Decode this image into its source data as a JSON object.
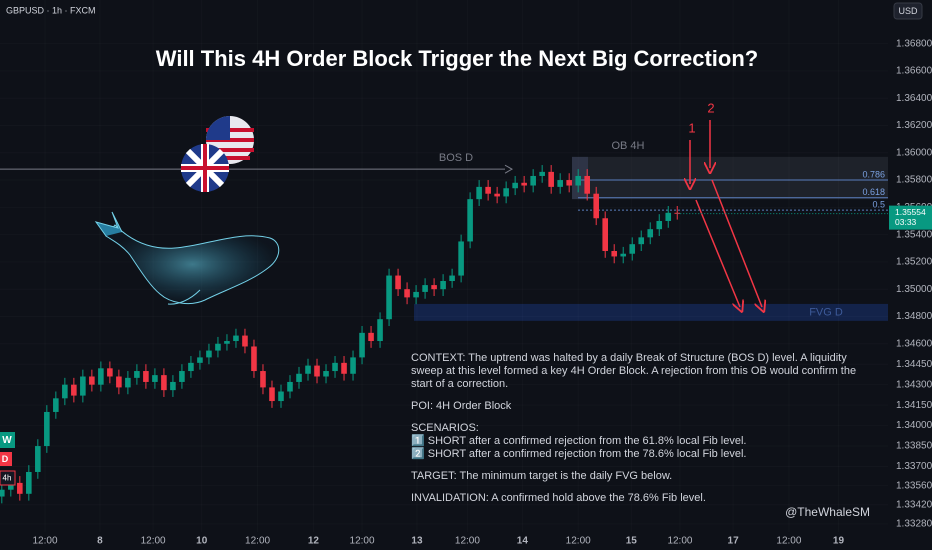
{
  "chart_data": {
    "type": "candlestick",
    "title": "Will This 4H Order Block Trigger the Next Big Correction?",
    "symbol_label": "GBPUSD · 1h · FXCM",
    "currency_label": "USD",
    "up_color": "#089981",
    "down_color": "#f23645",
    "grid": true,
    "open": [
      1.3348,
      1.3353,
      1.3358,
      1.335,
      1.3366,
      1.3385,
      1.341,
      1.342,
      1.343,
      1.3422,
      1.3436,
      1.343,
      1.3442,
      1.3436,
      1.3428,
      1.3435,
      1.344,
      1.3432,
      1.3437,
      1.3426,
      1.3432,
      1.344,
      1.3446,
      1.345,
      1.3455,
      1.346,
      1.3462,
      1.3466,
      1.3458,
      1.344,
      1.3428,
      1.3418,
      1.3425,
      1.3432,
      1.3438,
      1.3444,
      1.3436,
      1.344,
      1.3446,
      1.3438,
      1.345,
      1.3468,
      1.3462,
      1.3478,
      1.351,
      1.35,
      1.3494,
      1.3498,
      1.3503,
      1.35,
      1.3506,
      1.351,
      1.3535,
      1.3566,
      1.3575,
      1.357,
      1.3568,
      1.3574,
      1.3578,
      1.3576,
      1.3583,
      1.3586,
      1.3575,
      1.358,
      1.3576,
      1.3583,
      1.357,
      1.3552,
      1.3528,
      1.3524,
      1.3526,
      1.3533,
      1.3538,
      1.3544,
      1.355,
      1.3556
    ],
    "high": [
      1.3358,
      1.3363,
      1.3363,
      1.3371,
      1.339,
      1.3415,
      1.3425,
      1.3435,
      1.3435,
      1.3441,
      1.3441,
      1.3447,
      1.3447,
      1.3441,
      1.344,
      1.3445,
      1.3445,
      1.3442,
      1.3442,
      1.3437,
      1.3445,
      1.3451,
      1.3455,
      1.346,
      1.3465,
      1.3467,
      1.3471,
      1.3471,
      1.3463,
      1.3445,
      1.3433,
      1.343,
      1.3437,
      1.3443,
      1.3449,
      1.3449,
      1.3445,
      1.3451,
      1.3451,
      1.3455,
      1.3473,
      1.3473,
      1.3483,
      1.3515,
      1.3515,
      1.3505,
      1.3503,
      1.3508,
      1.3508,
      1.3511,
      1.3515,
      1.354,
      1.3571,
      1.358,
      1.358,
      1.3575,
      1.3579,
      1.3583,
      1.3583,
      1.3588,
      1.3591,
      1.3591,
      1.3585,
      1.3585,
      1.3588,
      1.3588,
      1.3575,
      1.3557,
      1.3533,
      1.3531,
      1.3538,
      1.3543,
      1.3549,
      1.3555,
      1.3561,
      1.3561
    ],
    "low": [
      1.3343,
      1.3348,
      1.3345,
      1.3345,
      1.3361,
      1.338,
      1.3405,
      1.3415,
      1.3417,
      1.3417,
      1.3425,
      1.3425,
      1.3431,
      1.3423,
      1.3423,
      1.343,
      1.3427,
      1.3427,
      1.3421,
      1.3421,
      1.3427,
      1.3435,
      1.3441,
      1.3445,
      1.345,
      1.3455,
      1.3457,
      1.3453,
      1.3435,
      1.3423,
      1.3413,
      1.3413,
      1.342,
      1.3427,
      1.3433,
      1.3431,
      1.3431,
      1.3435,
      1.3433,
      1.3433,
      1.3445,
      1.3457,
      1.3457,
      1.3473,
      1.3495,
      1.3489,
      1.3489,
      1.3493,
      1.3495,
      1.3495,
      1.3501,
      1.3505,
      1.353,
      1.3561,
      1.3565,
      1.3563,
      1.3563,
      1.3569,
      1.3571,
      1.3571,
      1.3578,
      1.357,
      1.357,
      1.3571,
      1.3571,
      1.3565,
      1.3547,
      1.3523,
      1.3519,
      1.3519,
      1.3521,
      1.3528,
      1.3533,
      1.3539,
      1.3545,
      1.3551
    ],
    "close": [
      1.3353,
      1.3358,
      1.335,
      1.3366,
      1.3385,
      1.341,
      1.342,
      1.343,
      1.3422,
      1.3436,
      1.343,
      1.3442,
      1.3436,
      1.3428,
      1.3435,
      1.344,
      1.3432,
      1.3437,
      1.3426,
      1.3432,
      1.344,
      1.3446,
      1.345,
      1.3455,
      1.346,
      1.3462,
      1.3466,
      1.3458,
      1.344,
      1.3428,
      1.3418,
      1.3425,
      1.3432,
      1.3438,
      1.3444,
      1.3436,
      1.344,
      1.3446,
      1.3438,
      1.345,
      1.3468,
      1.3462,
      1.3478,
      1.351,
      1.35,
      1.3494,
      1.3498,
      1.3503,
      1.35,
      1.3506,
      1.351,
      1.3535,
      1.3566,
      1.3575,
      1.357,
      1.3568,
      1.3574,
      1.3578,
      1.3576,
      1.3583,
      1.3586,
      1.3575,
      1.358,
      1.3576,
      1.3583,
      1.357,
      1.3552,
      1.3528,
      1.3524,
      1.3526,
      1.3533,
      1.3538,
      1.3544,
      1.355,
      1.3556,
      1.35554
    ],
    "xlim": [
      -0.2,
      98.4
    ],
    "xticks": [
      {
        "value": 4.8,
        "label": "12:00"
      },
      {
        "value": 10.9,
        "label": "8"
      },
      {
        "value": 16.8,
        "label": "12:00"
      },
      {
        "value": 22.2,
        "label": "10"
      },
      {
        "value": 28.4,
        "label": "12:00"
      },
      {
        "value": 34.6,
        "label": "12"
      },
      {
        "value": 40,
        "label": "12:00"
      },
      {
        "value": 46.1,
        "label": "13"
      },
      {
        "value": 51.7,
        "label": "12:00"
      },
      {
        "value": 57.8,
        "label": "14"
      },
      {
        "value": 64,
        "label": "12:00"
      },
      {
        "value": 69.9,
        "label": "15"
      },
      {
        "value": 75.3,
        "label": "12:00"
      },
      {
        "value": 81.2,
        "label": "17"
      },
      {
        "value": 87.4,
        "label": "12:00"
      },
      {
        "value": 92.9,
        "label": "19"
      }
    ],
    "ylim": [
      1.3322,
      1.3712
    ],
    "yticks": [
      {
        "value": 1.368,
        "label": "1.36800"
      },
      {
        "value": 1.366,
        "label": "1.36600"
      },
      {
        "value": 1.364,
        "label": "1.36400"
      },
      {
        "value": 1.362,
        "label": "1.36200"
      },
      {
        "value": 1.36,
        "label": "1.36000"
      },
      {
        "value": 1.358,
        "label": "1.35800"
      },
      {
        "value": 1.356,
        "label": "1.35600"
      },
      {
        "value": 1.354,
        "label": "1.35400"
      },
      {
        "value": 1.352,
        "label": "1.35200"
      },
      {
        "value": 1.35,
        "label": "1.35000"
      },
      {
        "value": 1.348,
        "label": "1.34800"
      },
      {
        "value": 1.346,
        "label": "1.34600"
      },
      {
        "value": 1.3445,
        "label": "1.34450"
      },
      {
        "value": 1.343,
        "label": "1.34300"
      },
      {
        "value": 1.3415,
        "label": "1.34150"
      },
      {
        "value": 1.34,
        "label": "1.34000"
      },
      {
        "value": 1.3385,
        "label": "1.33850"
      },
      {
        "value": 1.337,
        "label": "1.33700"
      },
      {
        "value": 1.3356,
        "label": "1.33560"
      },
      {
        "value": 1.3342,
        "label": "1.33420"
      },
      {
        "value": 1.3328,
        "label": "1.33280"
      }
    ],
    "last_price": {
      "value": 1.35554,
      "label": "1.35554"
    },
    "countdown": "03:33",
    "bos": {
      "label": "BOS D",
      "value": 1.3588
    },
    "order_block": {
      "label": "OB 4H",
      "top": 1.3597,
      "bottom": 1.3566
    },
    "fib_levels": [
      {
        "value": 1.358,
        "label": "0.786"
      },
      {
        "value": 1.3567,
        "label": "0.618"
      },
      {
        "value": 1.3558,
        "label": "0.5"
      }
    ],
    "fvg": {
      "label": "FVG D",
      "top": 1.3487,
      "bottom": 1.3479
    },
    "scenario_markers": [
      "1",
      "2"
    ],
    "timeframe_badges": [
      "W",
      "D",
      "4h"
    ]
  },
  "note": {
    "context": "CONTEXT: The uptrend was halted by a daily Break of Structure (BOS D) level. A liquidity sweep at this level formed a key 4H Order Block. A rejection from this OB would confirm the start of a correction.",
    "poi": "POI: 4H Order Block",
    "scenarios_title": "SCENARIOS:",
    "scenarios": [
      "1️⃣ SHORT after a confirmed rejection from the 61.8% local Fib level.",
      "2️⃣ SHORT after a confirmed rejection from the 78.6% local Fib level."
    ],
    "target": "TARGET: The minimum target is the daily FVG below.",
    "invalidation": "INVALIDATION: A confirmed hold above the 78.6% Fib level."
  },
  "watermark": "@TheWhaleSM"
}
